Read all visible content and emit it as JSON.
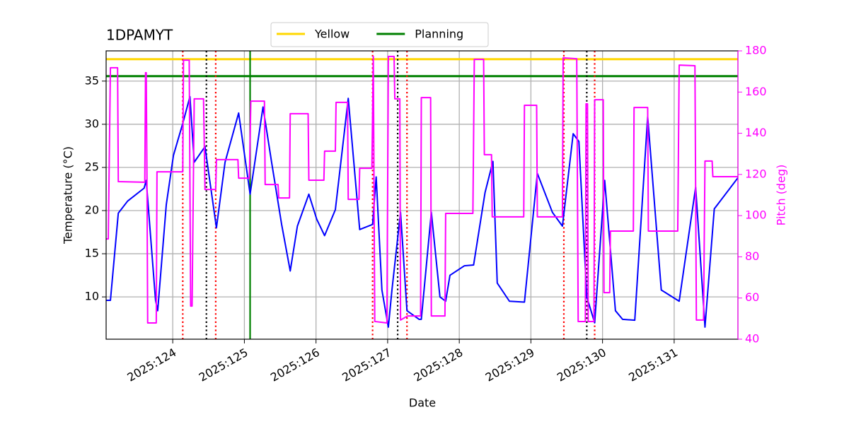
{
  "chart_data": {
    "type": "line",
    "title": "1DPAMYT",
    "xlabel": "Date",
    "ylabel": "Temperature (°C)",
    "y2label": "Pitch (deg)",
    "y2color": "#ff00ff",
    "xlim": [
      123.07,
      131.89
    ],
    "xticks": [
      {
        "value": 124,
        "label": "2025:124"
      },
      {
        "value": 125,
        "label": "2025:125"
      },
      {
        "value": 126,
        "label": "2025:126"
      },
      {
        "value": 127,
        "label": "2025:127"
      },
      {
        "value": 128,
        "label": "2025:128"
      },
      {
        "value": 129,
        "label": "2025:129"
      },
      {
        "value": 130,
        "label": "2025:130"
      },
      {
        "value": 131,
        "label": "2025:131"
      }
    ],
    "ylim": [
      5.1,
      38.5
    ],
    "yticks": [
      10,
      15,
      20,
      25,
      30,
      35
    ],
    "y2lim": [
      40,
      180
    ],
    "y2ticks": [
      40,
      60,
      80,
      100,
      120,
      140,
      160,
      180
    ],
    "grid": true,
    "legend": "upper center",
    "hlines": [
      {
        "name": "Yellow",
        "color": "#ffd700",
        "value": 37.54
      },
      {
        "name": "Planning",
        "color": "#008000",
        "value": 35.57
      }
    ],
    "vlines": [
      {
        "color": "#ff0000",
        "style": "dotted",
        "values": [
          124.14,
          124.6,
          126.79,
          127.27,
          129.46,
          129.89
        ]
      },
      {
        "color": "#000000",
        "style": "dotted",
        "values": [
          124.47,
          127.14,
          129.78
        ]
      },
      {
        "color": "#008000",
        "style": "solid",
        "values": [
          125.08
        ]
      }
    ],
    "series": [
      {
        "color": "#0000ff",
        "x": [
          123.07,
          123.13,
          123.24,
          123.37,
          123.6,
          123.63,
          123.76,
          123.79,
          123.91,
          124.01,
          124.14,
          124.24,
          124.3,
          124.45,
          124.61,
          124.73,
          124.92,
          125.08,
          125.26,
          125.38,
          125.52,
          125.64,
          125.74,
          125.9,
          126.01,
          126.12,
          126.27,
          126.45,
          126.61,
          126.79,
          126.84,
          126.92,
          127.01,
          127.06,
          127.18,
          127.27,
          127.44,
          127.47,
          127.61,
          127.73,
          127.81,
          127.87,
          128.07,
          128.2,
          128.36,
          128.47,
          128.53,
          128.7,
          128.91,
          129.09,
          129.3,
          129.44,
          129.59,
          129.67,
          129.78,
          129.89,
          130.03,
          130.18,
          130.28,
          130.45,
          130.63,
          130.82,
          131.07,
          131.3,
          131.43,
          131.56,
          131.89
        ],
        "values": [
          9.6,
          9.6,
          19.7,
          21.1,
          22.6,
          23.5,
          9.6,
          8.4,
          20.7,
          26.4,
          30.1,
          33.2,
          25.6,
          27.4,
          18.0,
          25.6,
          31.3,
          21.9,
          32.0,
          25.6,
          18.4,
          13.0,
          18.2,
          21.9,
          19.0,
          17.1,
          20.1,
          33.0,
          17.8,
          18.4,
          23.9,
          10.8,
          6.5,
          10.8,
          19.8,
          8.4,
          7.4,
          7.4,
          19.8,
          10.0,
          9.5,
          12.5,
          13.6,
          13.7,
          22.1,
          25.7,
          11.6,
          9.5,
          9.4,
          24.3,
          19.8,
          18.2,
          28.9,
          28.0,
          10.0,
          7.0,
          23.5,
          8.4,
          7.4,
          7.3,
          30.9,
          10.8,
          9.5,
          22.7,
          6.5,
          20.2,
          23.8
        ]
      },
      {
        "color": "#ff00ff",
        "axis": "y2",
        "x": [
          123.07,
          123.1,
          123.13,
          123.23,
          123.24,
          123.61,
          123.62,
          123.63,
          123.64,
          123.65,
          123.77,
          123.78,
          124.14,
          124.15,
          124.23,
          124.25,
          124.27,
          124.3,
          124.43,
          124.45,
          124.6,
          124.61,
          124.91,
          124.92,
          125.07,
          125.09,
          125.28,
          125.29,
          125.47,
          125.48,
          125.63,
          125.64,
          125.89,
          125.9,
          126.11,
          126.12,
          126.27,
          126.28,
          126.44,
          126.45,
          126.6,
          126.61,
          126.78,
          126.8,
          126.82,
          126.99,
          127.01,
          127.09,
          127.1,
          127.17,
          127.18,
          127.28,
          127.46,
          127.47,
          127.6,
          127.61,
          127.8,
          127.81,
          128.19,
          128.21,
          128.34,
          128.35,
          128.45,
          128.46,
          128.9,
          128.91,
          129.08,
          129.09,
          129.44,
          129.45,
          129.64,
          129.66,
          129.76,
          129.77,
          129.79,
          129.8,
          129.88,
          129.89,
          130.01,
          130.02,
          130.1,
          130.11,
          130.43,
          130.44,
          130.63,
          130.64,
          131.05,
          131.07,
          131.29,
          131.31,
          131.41,
          131.43,
          131.53,
          131.54,
          131.89
        ],
        "values": [
          88.7,
          88.7,
          171.8,
          171.8,
          116.5,
          116.2,
          169.4,
          169.4,
          118.9,
          47.9,
          47.9,
          121.3,
          121.3,
          175.5,
          175.5,
          56.1,
          56.1,
          156.7,
          156.7,
          112.7,
          112.7,
          127.2,
          127.2,
          118.2,
          118.2,
          155.6,
          155.6,
          115.1,
          115.1,
          108.6,
          108.6,
          149.5,
          149.5,
          117.2,
          117.2,
          131.3,
          131.3,
          155.0,
          155.0,
          107.9,
          107.9,
          123.0,
          123.0,
          177.3,
          48.6,
          47.9,
          177.3,
          177.3,
          156.7,
          156.7,
          49.3,
          51.3,
          51.3,
          157.3,
          157.3,
          51.3,
          51.3,
          101.1,
          101.1,
          175.9,
          175.9,
          129.6,
          129.6,
          99.4,
          99.4,
          153.6,
          153.6,
          99.4,
          99.4,
          176.6,
          176.2,
          48.6,
          48.6,
          154.3,
          154.3,
          48.6,
          48.6,
          156.3,
          156.3,
          62.6,
          62.6,
          92.5,
          92.5,
          152.5,
          152.5,
          92.5,
          92.5,
          173.1,
          172.8,
          49.3,
          49.3,
          126.5,
          126.5,
          118.9,
          118.9
        ]
      }
    ]
  }
}
